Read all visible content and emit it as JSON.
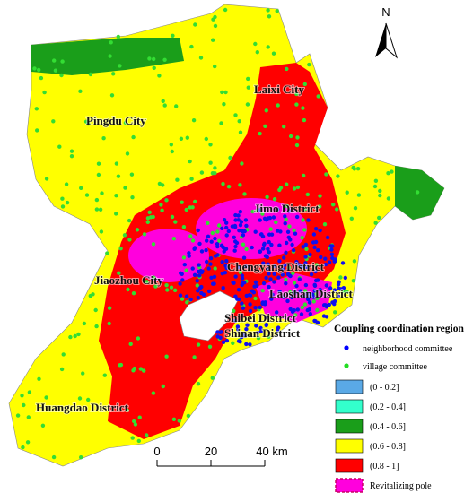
{
  "north_arrow": {
    "label": "N"
  },
  "map_labels": [
    "Pingdu City",
    "Laixi City",
    "Jimo District",
    "Chengyang District",
    "Jiaozhou City",
    "Laoshan District",
    "Shibei District",
    "Shinan District",
    "Huangdao District"
  ],
  "legend": {
    "title": "Coupling coordination region",
    "points": [
      "neighborhood committee",
      "village committee"
    ],
    "classes": [
      "(0 - 0.2]",
      "(0.2 - 0.4]",
      "(0.4 - 0.6]",
      "(0.6 - 0.8]",
      "(0.8 - 1]",
      "Revitalizing pole"
    ]
  },
  "scale_bar": {
    "labels": [
      "0",
      "20",
      "40 km"
    ]
  }
}
